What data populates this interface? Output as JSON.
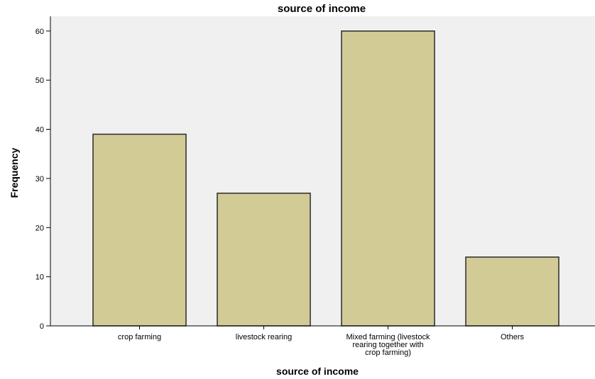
{
  "chart_data": {
    "type": "bar",
    "title": "source of income",
    "xlabel": "source of income",
    "ylabel": "Frequency",
    "categories": [
      "crop farming",
      "livestock rearing",
      "Mixed farming (livestock rearing together with crop farming)",
      "Others"
    ],
    "category_label_lines": [
      [
        "crop farming"
      ],
      [
        "livestock rearing"
      ],
      [
        "Mixed farming (livestock",
        "rearing  together with",
        "crop farming)"
      ],
      [
        "Others"
      ]
    ],
    "values": [
      39,
      27,
      60,
      14
    ],
    "ylim": [
      0,
      63
    ],
    "yticks": [
      0,
      10,
      20,
      30,
      40,
      50,
      60
    ],
    "grid": false,
    "legend": "none",
    "colors": {
      "bar_fill": "#d3cb96",
      "bar_stroke": "#2b2b2b",
      "plot_background": "#f0f0f0",
      "axis": "#000000"
    }
  }
}
